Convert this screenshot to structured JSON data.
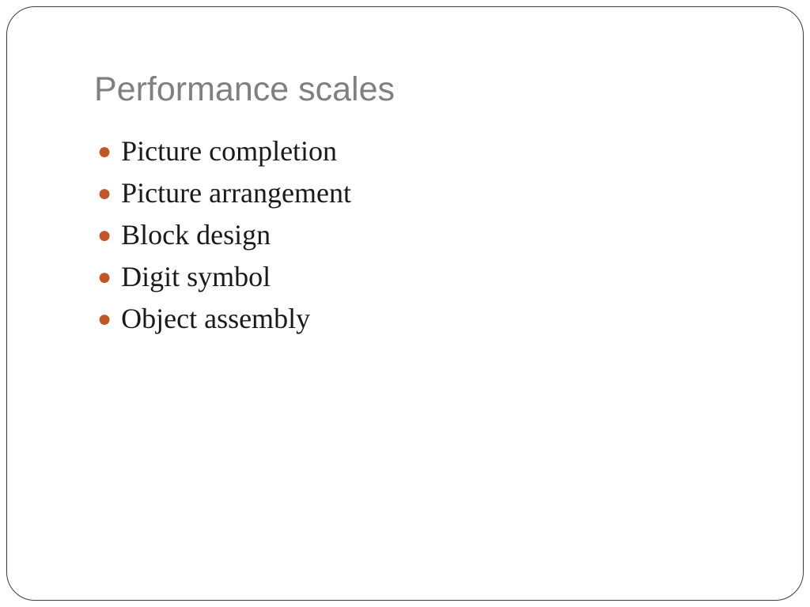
{
  "slide": {
    "title": "Performance scales",
    "title_color": "#808080",
    "title_fontsize": 43,
    "title_font_family": "Arial, Helvetica, sans-serif",
    "bullets": [
      "Picture completion",
      "Picture arrangement",
      "Block design",
      "Digit symbol",
      "Object assembly"
    ],
    "bullet_color": "#1a1a1a",
    "bullet_marker_color": "#c0572a",
    "bullet_fontsize": 36,
    "bullet_font_family": "Georgia, 'Times New Roman', serif",
    "background_color": "#ffffff",
    "border_color": "#3a3a3a",
    "border_radius": 36
  }
}
